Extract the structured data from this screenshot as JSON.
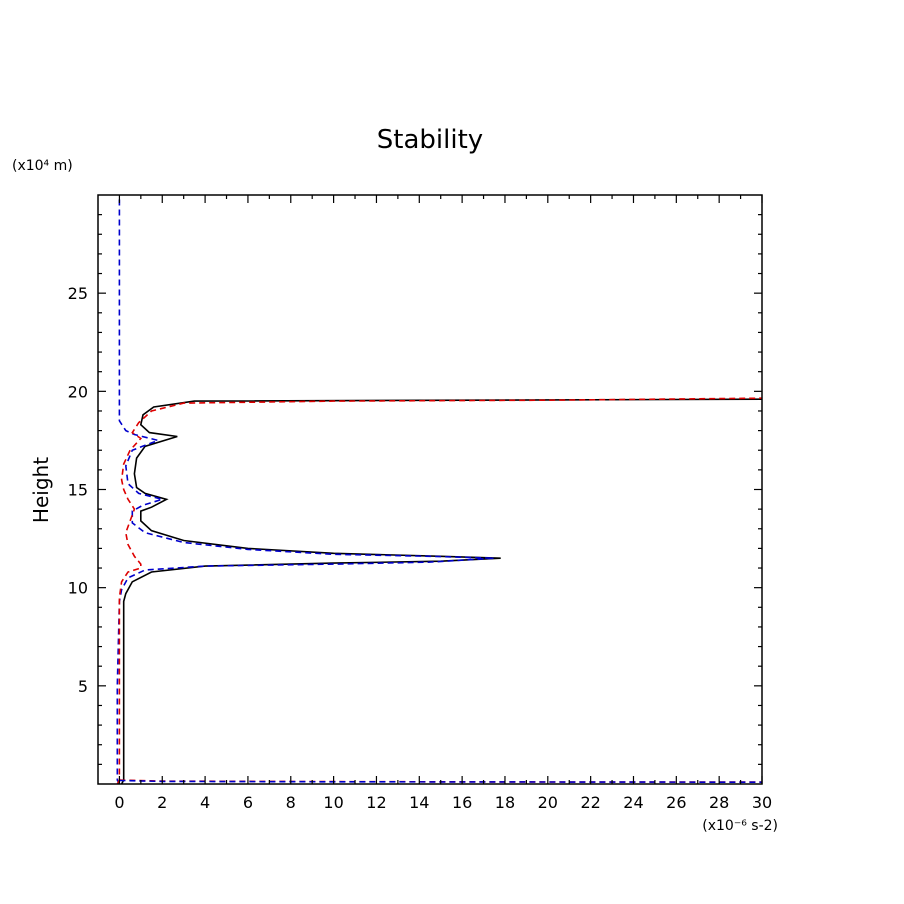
{
  "chart_data": {
    "type": "line",
    "title": "Stability",
    "xlabel": "",
    "ylabel": "Height",
    "x_unit_label": "(x10⁻⁶ s-2)",
    "y_unit_label": "(x10⁴ m)",
    "xlim": [
      -1,
      30
    ],
    "ylim": [
      0,
      30
    ],
    "x_ticks": [
      0,
      2,
      4,
      6,
      8,
      10,
      12,
      14,
      16,
      18,
      20,
      22,
      24,
      26,
      28,
      30
    ],
    "y_ticks": [
      5,
      10,
      15,
      20,
      25
    ],
    "grid": false,
    "legend": "none",
    "series": [
      {
        "color": "#000000",
        "style": "solid",
        "points": [
          [
            0.1,
            0.0
          ],
          [
            0.2,
            0.2
          ],
          [
            0.2,
            5.0
          ],
          [
            0.2,
            9.3
          ],
          [
            0.3,
            9.7
          ],
          [
            0.6,
            10.3
          ],
          [
            1.5,
            10.8
          ],
          [
            4.0,
            11.1
          ],
          [
            10.0,
            11.25
          ],
          [
            15.0,
            11.35
          ],
          [
            17.8,
            11.5
          ],
          [
            15.0,
            11.6
          ],
          [
            10.0,
            11.75
          ],
          [
            6.0,
            12.0
          ],
          [
            3.0,
            12.4
          ],
          [
            1.5,
            12.9
          ],
          [
            1.0,
            13.4
          ],
          [
            1.0,
            13.9
          ],
          [
            1.5,
            14.1
          ],
          [
            2.2,
            14.5
          ],
          [
            1.2,
            14.8
          ],
          [
            0.8,
            15.1
          ],
          [
            0.7,
            15.8
          ],
          [
            0.8,
            16.6
          ],
          [
            1.2,
            17.2
          ],
          [
            2.7,
            17.7
          ],
          [
            1.4,
            17.9
          ],
          [
            1.0,
            18.3
          ],
          [
            1.1,
            18.8
          ],
          [
            1.6,
            19.2
          ],
          [
            3.5,
            19.5
          ],
          [
            30.0,
            19.6
          ]
        ]
      },
      {
        "color": "#0000cc",
        "style": "dashed",
        "points": [
          [
            0.0,
            0.0
          ],
          [
            -0.1,
            0.2
          ],
          [
            -0.1,
            5.0
          ],
          [
            0.0,
            9.3
          ],
          [
            0.1,
            9.9
          ],
          [
            0.4,
            10.5
          ],
          [
            1.2,
            10.9
          ],
          [
            4.0,
            11.1
          ],
          [
            10.0,
            11.2
          ],
          [
            14.5,
            11.3
          ],
          [
            17.5,
            11.5
          ],
          [
            14.5,
            11.6
          ],
          [
            10.0,
            11.7
          ],
          [
            6.0,
            11.95
          ],
          [
            3.0,
            12.3
          ],
          [
            1.2,
            12.8
          ],
          [
            0.6,
            13.3
          ],
          [
            0.6,
            13.9
          ],
          [
            1.1,
            14.2
          ],
          [
            2.0,
            14.5
          ],
          [
            0.9,
            14.8
          ],
          [
            0.4,
            15.3
          ],
          [
            0.3,
            16.2
          ],
          [
            0.6,
            17.0
          ],
          [
            1.8,
            17.5
          ],
          [
            0.7,
            17.8
          ],
          [
            0.3,
            18.0
          ],
          [
            0.0,
            18.5
          ],
          [
            0.0,
            20.0
          ],
          [
            0.0,
            25.0
          ],
          [
            0.0,
            30.0
          ]
        ]
      },
      {
        "color": "#dd0000",
        "style": "dashed",
        "points": [
          [
            -0.1,
            0.0
          ],
          [
            0.0,
            0.2
          ],
          [
            0.0,
            5.0
          ],
          [
            0.0,
            9.5
          ],
          [
            0.1,
            10.3
          ],
          [
            0.4,
            10.8
          ],
          [
            1.0,
            11.0
          ],
          [
            1.0,
            11.2
          ],
          [
            0.7,
            11.6
          ],
          [
            0.4,
            12.2
          ],
          [
            0.3,
            12.8
          ],
          [
            0.5,
            13.4
          ],
          [
            0.7,
            14.0
          ],
          [
            0.4,
            14.5
          ],
          [
            0.2,
            15.0
          ],
          [
            0.1,
            15.5
          ],
          [
            0.2,
            16.3
          ],
          [
            0.5,
            17.0
          ],
          [
            1.0,
            17.6
          ],
          [
            0.6,
            17.9
          ],
          [
            0.9,
            18.4
          ],
          [
            1.5,
            19.0
          ],
          [
            3.0,
            19.4
          ],
          [
            10.0,
            19.5
          ],
          [
            20.0,
            19.55
          ],
          [
            30.0,
            19.65
          ]
        ]
      },
      {
        "color": "#dd0000",
        "style": "dashed",
        "points": [
          [
            0.0,
            0.2
          ],
          [
            2.0,
            0.15
          ],
          [
            10.0,
            0.12
          ],
          [
            20.0,
            0.1
          ],
          [
            30.0,
            0.1
          ]
        ]
      },
      {
        "color": "#0000cc",
        "style": "dashed",
        "points": [
          [
            0.0,
            0.18
          ],
          [
            2.0,
            0.13
          ],
          [
            10.0,
            0.11
          ],
          [
            20.0,
            0.1
          ],
          [
            30.0,
            0.09
          ]
        ]
      }
    ]
  }
}
